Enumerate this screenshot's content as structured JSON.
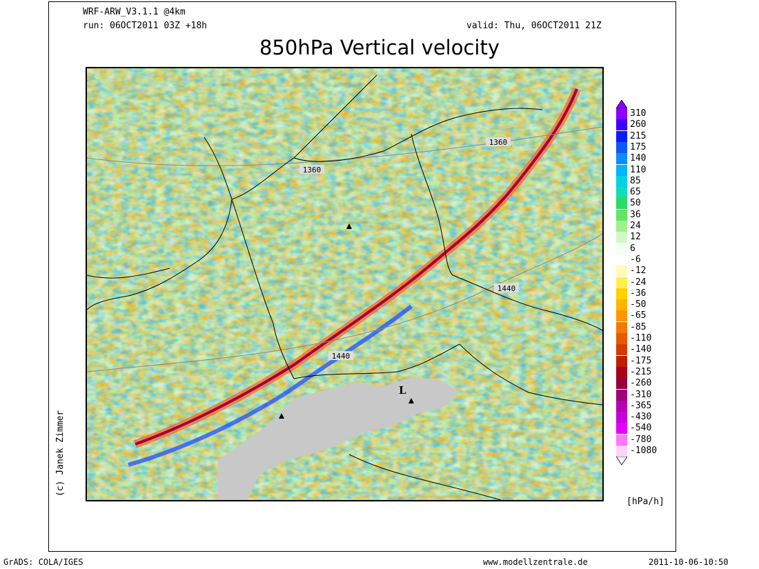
{
  "header": {
    "model": "WRF-ARW_V3.1.1 @4km",
    "run": "run: 06OCT2011 03Z +18h",
    "valid": "valid: Thu, 06OCT2011 21Z",
    "title": "850hPa Vertical velocity"
  },
  "map": {
    "contour_labels": [
      "1360",
      "1360",
      "1440",
      "1440"
    ],
    "low_label": "L"
  },
  "legend": {
    "unit": "[hPa/h]",
    "entries": [
      {
        "label": "310",
        "color": "#8c00ff"
      },
      {
        "label": "260",
        "color": "#3c00ff"
      },
      {
        "label": "215",
        "color": "#0a1eff"
      },
      {
        "label": "175",
        "color": "#0a5aff"
      },
      {
        "label": "140",
        "color": "#0a8cff"
      },
      {
        "label": "110",
        "color": "#00b4ff"
      },
      {
        "label": "85",
        "color": "#00d2e6"
      },
      {
        "label": "65",
        "color": "#14dcb4"
      },
      {
        "label": "50",
        "color": "#28dc64"
      },
      {
        "label": "36",
        "color": "#64e664"
      },
      {
        "label": "24",
        "color": "#a0f08c"
      },
      {
        "label": "12",
        "color": "#d2f8c8"
      },
      {
        "label": "6",
        "color": "#f4fff0"
      },
      {
        "label": "-6",
        "color": "#ffffff"
      },
      {
        "label": "-12",
        "color": "#fffab4"
      },
      {
        "label": "-24",
        "color": "#ffee50"
      },
      {
        "label": "-36",
        "color": "#ffd200"
      },
      {
        "label": "-50",
        "color": "#ffb400"
      },
      {
        "label": "-65",
        "color": "#ff9600"
      },
      {
        "label": "-85",
        "color": "#f57800"
      },
      {
        "label": "-110",
        "color": "#e65a00"
      },
      {
        "label": "-140",
        "color": "#d23c00"
      },
      {
        "label": "-175",
        "color": "#be1e00"
      },
      {
        "label": "-215",
        "color": "#aa0014"
      },
      {
        "label": "-260",
        "color": "#96003c"
      },
      {
        "label": "-310",
        "color": "#a00078"
      },
      {
        "label": "-365",
        "color": "#b400b4"
      },
      {
        "label": "-430",
        "color": "#c800dc"
      },
      {
        "label": "-540",
        "color": "#e600ff"
      },
      {
        "label": "-780",
        "color": "#ff78ff"
      },
      {
        "label": "-1080",
        "color": "#ffd2ff"
      }
    ]
  },
  "credits": {
    "author": "(c) Janek Zimmer",
    "grads": "GrADS: COLA/IGES",
    "website": "www.modellzentrale.de",
    "timestamp": "2011-10-06-10:50"
  }
}
